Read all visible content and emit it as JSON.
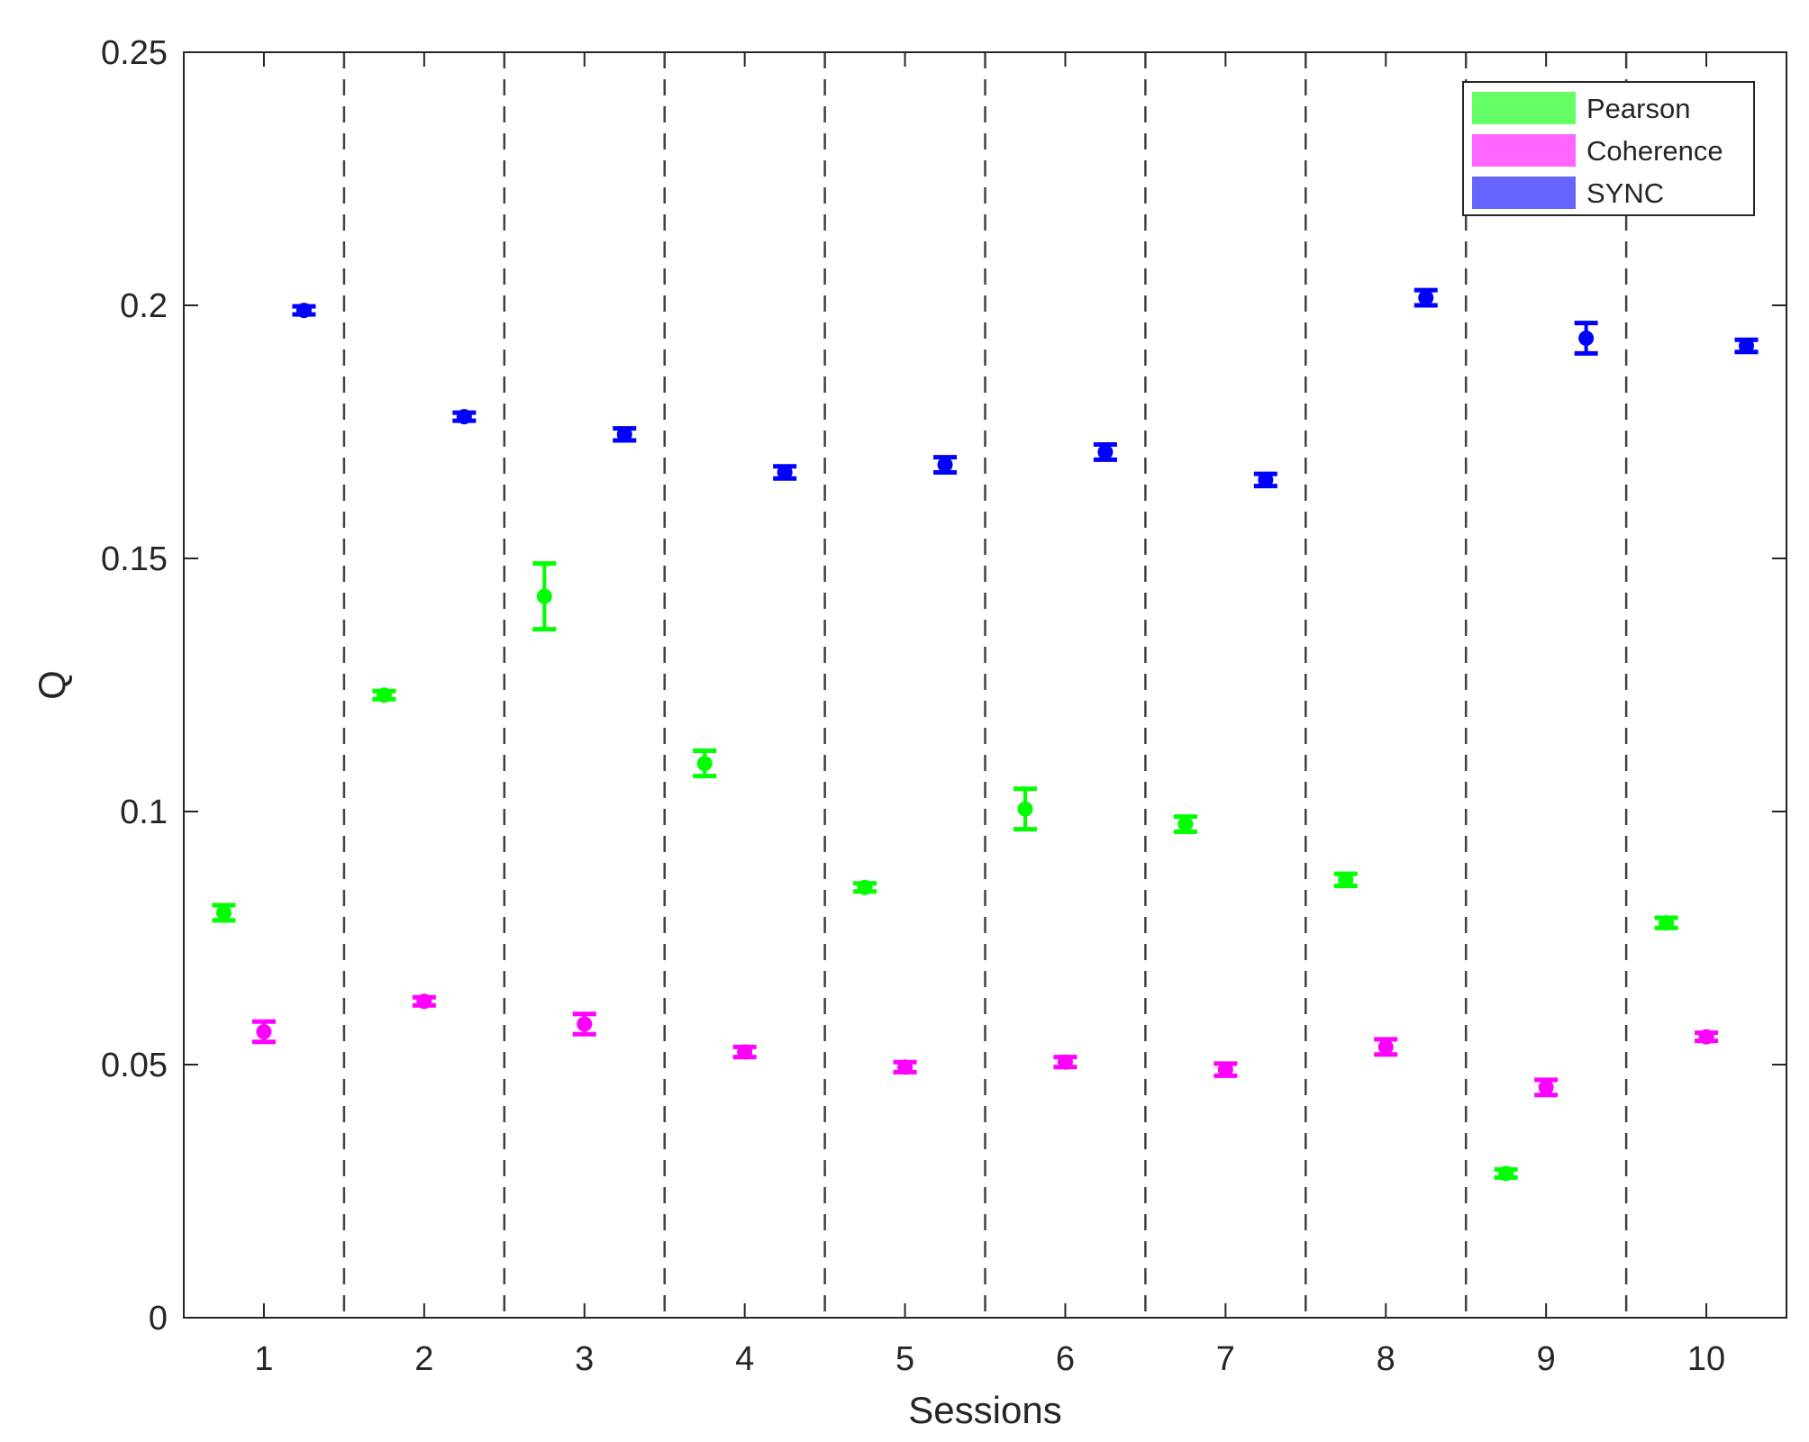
{
  "chart_data": {
    "type": "scatter",
    "xlabel": "Sessions",
    "ylabel": "Q",
    "xlim": [
      0.5,
      10.5
    ],
    "ylim": [
      0,
      0.25
    ],
    "xticks": [
      "1",
      "2",
      "3",
      "4",
      "5",
      "6",
      "7",
      "8",
      "9",
      "10"
    ],
    "yticks": [
      "0",
      "0.05",
      "0.1",
      "0.15",
      "0.2",
      "0.25"
    ],
    "grid": false,
    "session_separators": [
      1.5,
      2.5,
      3.5,
      4.5,
      5.5,
      6.5,
      7.5,
      8.5,
      9.5
    ],
    "legend_position": "top-right",
    "series": [
      {
        "name": "Pearson",
        "color": "#00ff00",
        "legend_color": "#66ff66",
        "x": [
          0.75,
          1.75,
          2.75,
          3.75,
          4.75,
          5.75,
          6.75,
          7.75,
          8.75,
          9.75
        ],
        "y": [
          0.08,
          0.123,
          0.1425,
          0.1095,
          0.085,
          0.1005,
          0.0975,
          0.0865,
          0.0285,
          0.078
        ],
        "err": [
          0.0015,
          0.0008,
          0.0065,
          0.0025,
          0.0008,
          0.004,
          0.0015,
          0.0012,
          0.0008,
          0.001
        ]
      },
      {
        "name": "Coherence",
        "color": "#ff00ff",
        "legend_color": "#ff66ff",
        "x": [
          1.0,
          2.0,
          3.0,
          4.0,
          5.0,
          6.0,
          7.0,
          8.0,
          9.0,
          10.0
        ],
        "y": [
          0.0565,
          0.0625,
          0.058,
          0.0525,
          0.0495,
          0.0505,
          0.049,
          0.0535,
          0.0455,
          0.0555
        ],
        "err": [
          0.002,
          0.0008,
          0.002,
          0.001,
          0.001,
          0.001,
          0.0012,
          0.0015,
          0.0015,
          0.0008
        ]
      },
      {
        "name": "SYNC",
        "color": "#0000ff",
        "legend_color": "#6666ff",
        "x": [
          1.25,
          2.25,
          3.25,
          4.25,
          5.25,
          6.25,
          7.25,
          8.25,
          9.25,
          10.25
        ],
        "y": [
          0.199,
          0.178,
          0.1745,
          0.167,
          0.1685,
          0.171,
          0.1655,
          0.2015,
          0.1935,
          0.192
        ],
        "err": [
          0.0008,
          0.0008,
          0.0012,
          0.0012,
          0.0015,
          0.0015,
          0.0012,
          0.0015,
          0.003,
          0.0012
        ]
      }
    ]
  }
}
